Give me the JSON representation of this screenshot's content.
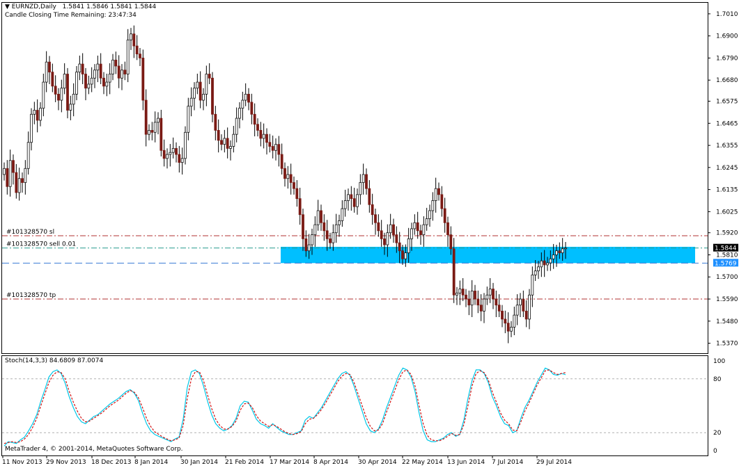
{
  "header": {
    "symbol": "EURNZD,Daily",
    "ohlc": "1.5841 1.5846 1.5841 1.5844",
    "candle_timer": "Candle Closing Time Remaining: 23:47:34"
  },
  "indicator": {
    "label": "Stoch(14,3,3) 84.6809 87.0074",
    "copyright": "MetaTrader 4, © 2001-2014, MetaQuotes Software Corp.",
    "levels": [
      "100",
      "80",
      "20",
      "0"
    ]
  },
  "orders": {
    "sl_label": "#101328570 sl",
    "sell_label": "#101328570 sell 0.01",
    "tp_label": "#101328570 tp"
  },
  "price_tags": {
    "current": "1.5844",
    "zone_low": "1.5769"
  },
  "colors": {
    "up_candle": "#111111",
    "down_candle": "#7a1a14",
    "zone": "#00bfff",
    "stop_loss_line": "#b03030",
    "take_profit_line": "#b03030",
    "entry_line": "#2a9d8f",
    "stoch_main": "#00c8e8",
    "stoch_signal": "#d01010"
  },
  "chart_data": {
    "type": "candlestick",
    "ylim": [
      1.532,
      1.7065
    ],
    "y_ticks": [
      "1.7010",
      "1.6900",
      "1.6790",
      "1.6680",
      "1.6575",
      "1.6465",
      "1.6355",
      "1.6245",
      "1.6135",
      "1.6025",
      "1.5920",
      "1.5810",
      "1.5700",
      "1.5590",
      "1.5480",
      "1.5370"
    ],
    "x_labels": [
      "11 Nov 2013",
      "29 Nov 2013",
      "18 Dec 2013",
      "8 Jan 2014",
      "30 Jan 2014",
      "21 Feb 2014",
      "17 Mar 2014",
      "8 Apr 2014",
      "30 Apr 2014",
      "22 May 2014",
      "13 Jun 2014",
      "7 Jul 2014",
      "29 Jul 2014"
    ],
    "levels": {
      "stop_loss": 1.5905,
      "entry": 1.5844,
      "take_profit": 1.559,
      "zone_top": 1.585,
      "zone_bottom": 1.5769
    },
    "close_series": [
      1.624,
      1.615,
      1.628,
      1.622,
      1.612,
      1.619,
      1.617,
      1.624,
      1.637,
      1.651,
      1.653,
      1.648,
      1.654,
      1.667,
      1.677,
      1.672,
      1.665,
      1.661,
      1.658,
      1.664,
      1.671,
      1.653,
      1.656,
      1.661,
      1.672,
      1.676,
      1.671,
      1.664,
      1.666,
      1.669,
      1.673,
      1.676,
      1.669,
      1.665,
      1.667,
      1.671,
      1.678,
      1.675,
      1.669,
      1.673,
      1.671,
      1.688,
      1.691,
      1.685,
      1.681,
      1.679,
      1.658,
      1.641,
      1.643,
      1.642,
      1.647,
      1.649,
      1.633,
      1.629,
      1.631,
      1.632,
      1.634,
      1.631,
      1.627,
      1.629,
      1.642,
      1.655,
      1.659,
      1.664,
      1.667,
      1.658,
      1.661,
      1.671,
      1.669,
      1.651,
      1.643,
      1.638,
      1.636,
      1.639,
      1.634,
      1.635,
      1.641,
      1.649,
      1.654,
      1.658,
      1.661,
      1.657,
      1.651,
      1.646,
      1.643,
      1.639,
      1.641,
      1.637,
      1.635,
      1.633,
      1.636,
      1.631,
      1.624,
      1.619,
      1.621,
      1.617,
      1.614,
      1.609,
      1.601,
      1.589,
      1.583,
      1.586,
      1.591,
      1.596,
      1.603,
      1.597,
      1.593,
      1.589,
      1.587,
      1.592,
      1.596,
      1.598,
      1.604,
      1.608,
      1.611,
      1.609,
      1.605,
      1.611,
      1.617,
      1.621,
      1.614,
      1.606,
      1.601,
      1.597,
      1.593,
      1.589,
      1.586,
      1.592,
      1.596,
      1.591,
      1.587,
      1.583,
      1.579,
      1.582,
      1.589,
      1.594,
      1.597,
      1.593,
      1.591,
      1.596,
      1.599,
      1.603,
      1.608,
      1.614,
      1.611,
      1.604,
      1.597,
      1.591,
      1.584,
      1.561,
      1.562,
      1.564,
      1.561,
      1.559,
      1.556,
      1.563,
      1.559,
      1.556,
      1.553,
      1.559,
      1.561,
      1.564,
      1.559,
      1.556,
      1.553,
      1.549,
      1.547,
      1.543,
      1.545,
      1.551,
      1.556,
      1.559,
      1.553,
      1.549,
      1.561,
      1.571,
      1.573,
      1.575,
      1.578,
      1.576,
      1.577,
      1.579,
      1.581,
      1.583,
      1.582,
      1.584,
      1.5844
    ],
    "stoch_main": [
      5,
      10,
      9,
      8,
      12,
      15,
      22,
      30,
      40,
      55,
      68,
      82,
      88,
      90,
      86,
      75,
      60,
      48,
      38,
      32,
      30,
      34,
      38,
      40,
      44,
      48,
      52,
      55,
      58,
      62,
      66,
      68,
      64,
      56,
      42,
      30,
      22,
      18,
      16,
      14,
      12,
      10,
      13,
      15,
      35,
      70,
      88,
      90,
      86,
      72,
      55,
      40,
      30,
      25,
      22,
      24,
      28,
      36,
      50,
      55,
      54,
      45,
      35,
      30,
      28,
      25,
      30,
      26,
      22,
      20,
      18,
      18,
      20,
      22,
      34,
      38,
      36,
      42,
      48,
      56,
      64,
      72,
      80,
      86,
      88,
      84,
      72,
      58,
      44,
      30,
      22,
      20,
      24,
      34,
      48,
      60,
      72,
      84,
      92,
      90,
      82,
      66,
      42,
      22,
      12,
      10,
      10,
      12,
      14,
      18,
      20,
      16,
      18,
      34,
      58,
      78,
      90,
      90,
      86,
      76,
      60,
      50,
      38,
      30,
      28,
      20,
      22,
      36,
      48,
      56,
      66,
      76,
      84,
      92,
      90,
      85,
      84,
      86,
      84.68
    ],
    "stoch_signal": [
      8,
      9,
      10,
      9,
      10,
      13,
      18,
      26,
      36,
      50,
      63,
      76,
      84,
      88,
      87,
      80,
      66,
      54,
      44,
      36,
      32,
      33,
      36,
      39,
      42,
      46,
      50,
      53,
      56,
      60,
      64,
      67,
      65,
      59,
      48,
      36,
      27,
      21,
      18,
      15,
      13,
      11,
      12,
      14,
      28,
      58,
      80,
      88,
      88,
      78,
      62,
      47,
      35,
      28,
      24,
      24,
      27,
      33,
      45,
      52,
      53,
      48,
      39,
      33,
      30,
      27,
      29,
      27,
      24,
      21,
      19,
      18,
      19,
      21,
      30,
      35,
      36,
      40,
      46,
      53,
      61,
      69,
      77,
      83,
      86,
      85,
      76,
      63,
      50,
      37,
      27,
      22,
      23,
      30,
      43,
      55,
      67,
      79,
      88,
      90,
      85,
      72,
      50,
      30,
      17,
      12,
      11,
      11,
      13,
      16,
      19,
      17,
      18,
      29,
      50,
      72,
      86,
      89,
      87,
      79,
      65,
      54,
      42,
      34,
      30,
      23,
      22,
      32,
      44,
      53,
      63,
      73,
      81,
      89,
      90,
      87,
      85,
      86,
      87.0074
    ]
  }
}
